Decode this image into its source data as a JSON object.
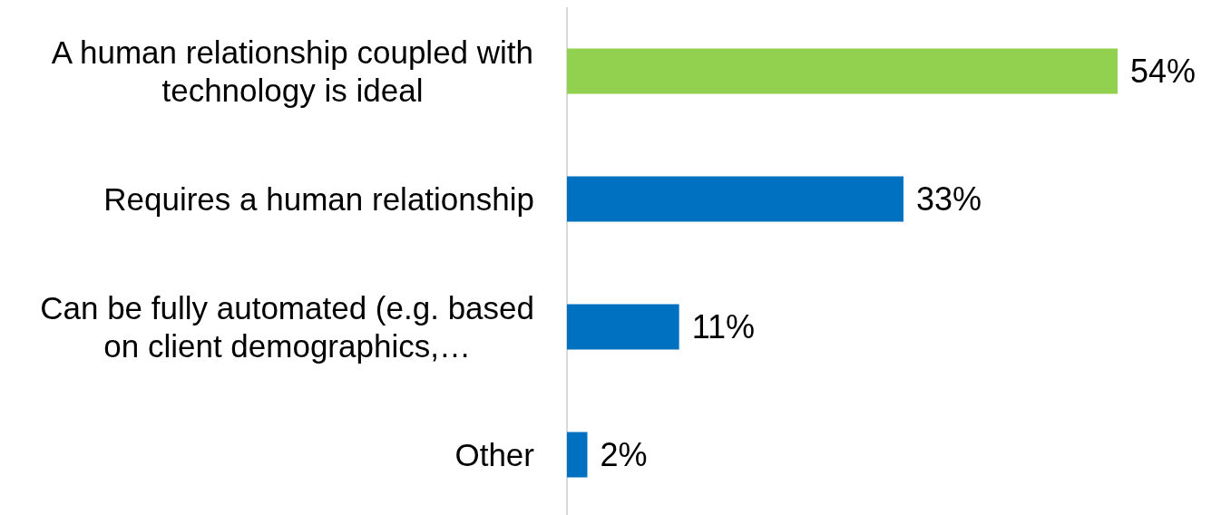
{
  "chart_data": {
    "type": "bar",
    "orientation": "horizontal",
    "categories": [
      "A human relationship coupled with technology is ideal",
      "Requires a human relationship",
      "Can be fully automated (e.g. based on client demographics,…",
      "Other"
    ],
    "values": [
      54,
      33,
      11,
      2
    ],
    "colors": [
      "#92d050",
      "#0070c0",
      "#0070c0",
      "#0070c0"
    ],
    "value_labels": [
      "54%",
      "33%",
      "11%",
      "2%"
    ]
  }
}
